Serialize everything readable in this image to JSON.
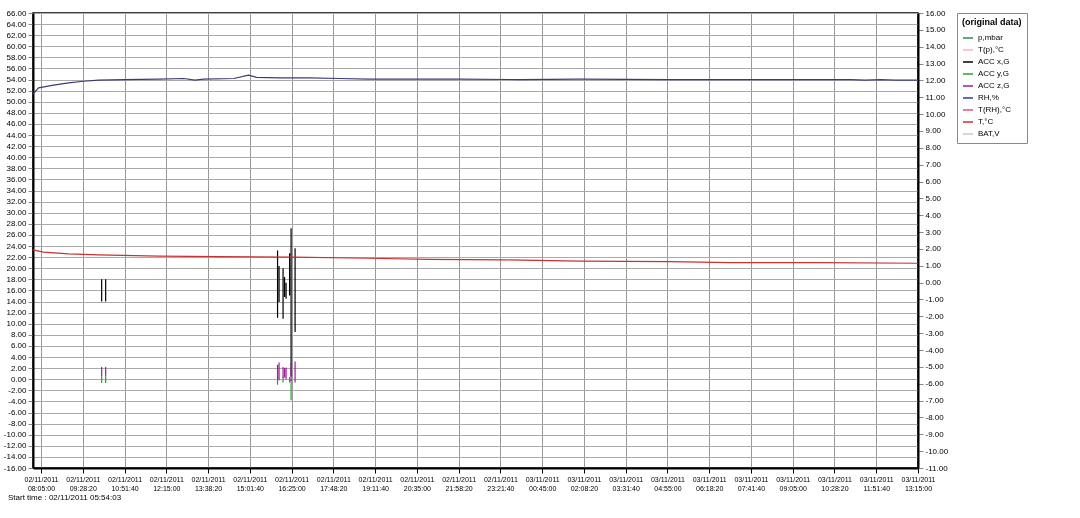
{
  "chart_data": {
    "type": "line",
    "legend_title": "(original data)",
    "legend": "right",
    "grid": true,
    "marker": "none",
    "line_style": "solid",
    "annotations": [
      "Start time : 02/11/2011 05:54:03"
    ],
    "xlim": [
      "2011-11-02T07:49:00",
      "2011-11-03T13:15:00"
    ],
    "xticks": [
      {
        "value": "2011-11-02T08:05:00",
        "label": "02/11/2011 08:05:00"
      },
      {
        "value": "2011-11-02T09:28:20",
        "label": "02/11/2011 09:28:20"
      },
      {
        "value": "2011-11-02T10:51:40",
        "label": "02/11/2011 10:51:40"
      },
      {
        "value": "2011-11-02T12:15:00",
        "label": "02/11/2011 12:15:00"
      },
      {
        "value": "2011-11-02T13:38:20",
        "label": "02/11/2011 13:38:20"
      },
      {
        "value": "2011-11-02T15:01:40",
        "label": "02/11/2011 15:01:40"
      },
      {
        "value": "2011-11-02T16:25:00",
        "label": "02/11/2011 16:25:00"
      },
      {
        "value": "2011-11-02T17:48:20",
        "label": "02/11/2011 17:48:20"
      },
      {
        "value": "2011-11-02T19:11:40",
        "label": "02/11/2011 19:11:40"
      },
      {
        "value": "2011-11-02T20:35:00",
        "label": "02/11/2011 20:35:00"
      },
      {
        "value": "2011-11-02T21:58:20",
        "label": "02/11/2011 21:58:20"
      },
      {
        "value": "2011-11-02T23:21:40",
        "label": "02/11/2011 23:21:40"
      },
      {
        "value": "2011-11-03T00:45:00",
        "label": "03/11/2011 00:45:00"
      },
      {
        "value": "2011-11-03T02:08:20",
        "label": "03/11/2011 02:08:20"
      },
      {
        "value": "2011-11-03T03:31:40",
        "label": "03/11/2011 03:31:40"
      },
      {
        "value": "2011-11-03T04:55:00",
        "label": "03/11/2011 04:55:00"
      },
      {
        "value": "2011-11-03T06:18:20",
        "label": "03/11/2011 06:18:20"
      },
      {
        "value": "2011-11-03T07:41:40",
        "label": "03/11/2011 07:41:40"
      },
      {
        "value": "2011-11-03T09:05:00",
        "label": "03/11/2011 09:05:00"
      },
      {
        "value": "2011-11-03T10:28:20",
        "label": "03/11/2011 10:28:20"
      },
      {
        "value": "2011-11-03T11:51:40",
        "label": "03/11/2011 11:51:40"
      },
      {
        "value": "2011-11-03T13:15:00",
        "label": "03/11/2011 13:15:00"
      }
    ],
    "ylim": [
      -16,
      66
    ],
    "yticks": [
      {
        "value": -16,
        "label": "-16.00"
      },
      {
        "value": -14,
        "label": "-14.00"
      },
      {
        "value": -12,
        "label": "-12.00"
      },
      {
        "value": -10,
        "label": "-10.00"
      },
      {
        "value": -8,
        "label": "-8.00"
      },
      {
        "value": -6,
        "label": "-6.00"
      },
      {
        "value": -4,
        "label": "-4.00"
      },
      {
        "value": -2,
        "label": "-2.00"
      },
      {
        "value": 0,
        "label": "0.00"
      },
      {
        "value": 2,
        "label": "2.00"
      },
      {
        "value": 4,
        "label": "4.00"
      },
      {
        "value": 6,
        "label": "6.00"
      },
      {
        "value": 8,
        "label": "8.00"
      },
      {
        "value": 10,
        "label": "10.00"
      },
      {
        "value": 12,
        "label": "12.00"
      },
      {
        "value": 14,
        "label": "14.00"
      },
      {
        "value": 16,
        "label": "16.00"
      },
      {
        "value": 18,
        "label": "18.00"
      },
      {
        "value": 20,
        "label": "20.00"
      },
      {
        "value": 22,
        "label": "22.00"
      },
      {
        "value": 24,
        "label": "24.00"
      },
      {
        "value": 26,
        "label": "26.00"
      },
      {
        "value": 28,
        "label": "28.00"
      },
      {
        "value": 30,
        "label": "30.00"
      },
      {
        "value": 32,
        "label": "32.00"
      },
      {
        "value": 34,
        "label": "34.00"
      },
      {
        "value": 36,
        "label": "36.00"
      },
      {
        "value": 38,
        "label": "38.00"
      },
      {
        "value": 40,
        "label": "40.00"
      },
      {
        "value": 42,
        "label": "42.00"
      },
      {
        "value": 44,
        "label": "44.00"
      },
      {
        "value": 46,
        "label": "46.00"
      },
      {
        "value": 48,
        "label": "48.00"
      },
      {
        "value": 50,
        "label": "50.00"
      },
      {
        "value": 52,
        "label": "52.00"
      },
      {
        "value": 54,
        "label": "54.00"
      },
      {
        "value": 56,
        "label": "56.00"
      },
      {
        "value": 58,
        "label": "58.00"
      },
      {
        "value": 60,
        "label": "60.00"
      },
      {
        "value": 62,
        "label": "62.00"
      },
      {
        "value": 64,
        "label": "64.00"
      },
      {
        "value": 66,
        "label": "66.00"
      }
    ],
    "y2lim": [
      -11,
      16
    ],
    "y2ticks": [
      {
        "value": -11,
        "label": "-11.00"
      },
      {
        "value": -10,
        "label": "-10.00"
      },
      {
        "value": -9,
        "label": "-9.00"
      },
      {
        "value": -8,
        "label": "-8.00"
      },
      {
        "value": -7,
        "label": "-7.00"
      },
      {
        "value": -6,
        "label": "-6.00"
      },
      {
        "value": -5,
        "label": "-5.00"
      },
      {
        "value": -4,
        "label": "-4.00"
      },
      {
        "value": -3,
        "label": "-3.00"
      },
      {
        "value": -2,
        "label": "-2.00"
      },
      {
        "value": -1,
        "label": "-1.00"
      },
      {
        "value": 0,
        "label": "0.00"
      },
      {
        "value": 1,
        "label": "1.00"
      },
      {
        "value": 2,
        "label": "2.00"
      },
      {
        "value": 3,
        "label": "3.00"
      },
      {
        "value": 4,
        "label": "4.00"
      },
      {
        "value": 5,
        "label": "5.00"
      },
      {
        "value": 6,
        "label": "6.00"
      },
      {
        "value": 7,
        "label": "7.00"
      },
      {
        "value": 8,
        "label": "8.00"
      },
      {
        "value": 9,
        "label": "9.00"
      },
      {
        "value": 10,
        "label": "10.00"
      },
      {
        "value": 11,
        "label": "11.00"
      },
      {
        "value": 12,
        "label": "12.00"
      },
      {
        "value": 13,
        "label": "13.00"
      },
      {
        "value": 14,
        "label": "14.00"
      },
      {
        "value": 15,
        "label": "15.00"
      },
      {
        "value": 16,
        "label": "16.00"
      }
    ],
    "series": [
      {
        "name": "p,mbar",
        "color": "#2e8b57"
      },
      {
        "name": "T(p),°C",
        "color": "#f4b6c2"
      },
      {
        "name": "ACC x,G",
        "color": "#000000",
        "x": [
          "2011-11-02T10:06:00",
          "2011-11-02T10:06:00",
          null,
          "2011-11-02T10:14:00",
          "2011-11-02T10:14:00",
          null,
          "2011-11-02T15:57:00",
          "2011-11-02T15:57:00",
          null,
          "2011-11-02T16:00:00",
          "2011-11-02T16:00:00",
          null,
          "2011-11-02T16:08:00",
          "2011-11-02T16:08:00",
          null,
          "2011-11-02T16:11:00",
          "2011-11-02T16:11:00",
          null,
          "2011-11-02T16:14:00",
          "2011-11-02T16:14:00",
          null,
          "2011-11-02T16:21:00",
          "2011-11-02T16:21:00",
          null,
          "2011-11-02T16:24:00",
          "2011-11-02T16:24:00",
          null,
          "2011-11-02T16:32:00",
          "2011-11-02T16:32:00"
        ],
        "values": [
          18.0,
          14.0,
          null,
          18.0,
          14.0,
          null,
          23.2,
          11.1,
          null,
          20.4,
          13.9,
          null,
          20.0,
          10.9,
          null,
          18.4,
          14.8,
          null,
          17.4,
          14.5,
          null,
          22.7,
          15.1,
          null,
          27.2,
          0.5,
          null,
          23.6,
          8.5
        ]
      },
      {
        "name": "ACC y,G",
        "color": "#2ca02c",
        "x": [
          "2011-11-02T10:06:00",
          "2011-11-02T10:06:00",
          null,
          "2011-11-02T10:14:00",
          "2011-11-02T10:14:00",
          null,
          "2011-11-02T15:57:00",
          "2011-11-02T15:57:00",
          null,
          "2011-11-02T16:08:00",
          "2011-11-02T16:08:00",
          null,
          "2011-11-02T16:21:00",
          "2011-11-02T16:21:00",
          null,
          "2011-11-02T16:24:00",
          "2011-11-02T16:24:00"
        ],
        "values": [
          0.5,
          -0.7,
          null,
          0.5,
          -0.7,
          null,
          0.2,
          -1.0,
          null,
          0.4,
          -0.6,
          null,
          0.4,
          -0.6,
          null,
          0.0,
          -3.8
        ]
      },
      {
        "name": "ACC z,G",
        "color": "#9b1f9b",
        "x": [
          "2011-11-02T10:06:00",
          "2011-11-02T10:06:00",
          null,
          "2011-11-02T10:14:00",
          "2011-11-02T10:14:00",
          null,
          "2011-11-02T15:57:00",
          "2011-11-02T15:57:00",
          null,
          "2011-11-02T16:00:00",
          "2011-11-02T16:00:00",
          null,
          "2011-11-02T16:08:00",
          "2011-11-02T16:08:00",
          null,
          "2011-11-02T16:11:00",
          "2011-11-02T16:11:00",
          null,
          "2011-11-02T16:14:00",
          "2011-11-02T16:14:00",
          null,
          "2011-11-02T16:24:00",
          "2011-11-02T16:24:00",
          null,
          "2011-11-02T16:32:00",
          "2011-11-02T16:32:00"
        ],
        "values": [
          2.2,
          0.5,
          null,
          2.2,
          0.5,
          null,
          2.6,
          0.0,
          null,
          3.0,
          -0.2,
          null,
          2.2,
          0.2,
          null,
          2.0,
          0.3,
          null,
          2.1,
          0.0,
          null,
          3.0,
          -0.3,
          null,
          3.2,
          -0.6
        ]
      },
      {
        "name": "RH,%",
        "color": "#3b3b7a",
        "x": [
          "2011-11-02T07:49:00",
          "2011-11-02T08:00:00",
          "2011-11-02T08:30:00",
          "2011-11-02T09:00:00",
          "2011-11-02T09:30:00",
          "2011-11-02T10:00:00",
          "2011-11-02T10:51:00",
          "2011-11-02T12:00:00",
          "2011-11-02T12:50:00",
          "2011-11-02T13:12:00",
          "2011-11-02T13:30:00",
          "2011-11-02T14:30:00",
          "2011-11-02T14:59:00",
          "2011-11-02T15:15:00",
          "2011-11-02T16:00:00",
          "2011-11-02T17:00:00",
          "2011-11-02T18:00:00",
          "2011-11-02T19:00:00",
          "2011-11-02T20:00:00",
          "2011-11-02T22:00:00",
          "2011-11-03T00:00:00",
          "2011-11-03T02:00:00",
          "2011-11-03T05:00:00",
          "2011-11-03T08:00:00",
          "2011-11-03T11:00:00",
          "2011-11-03T11:30:00",
          "2011-11-03T12:00:00",
          "2011-11-03T12:30:00",
          "2011-11-03T13:15:00"
        ],
        "values": [
          51.4,
          52.5,
          53.0,
          53.4,
          53.7,
          53.9,
          54.0,
          54.1,
          54.2,
          53.9,
          54.1,
          54.2,
          54.8,
          54.4,
          54.3,
          54.3,
          54.2,
          54.1,
          54.1,
          54.1,
          54.0,
          54.1,
          54.0,
          54.0,
          54.0,
          53.9,
          54.0,
          53.9,
          53.9
        ]
      },
      {
        "name": "T(RH),°C",
        "color": "#e05080"
      },
      {
        "name": "T,°C",
        "color": "#c83232",
        "x": [
          "2011-11-02T07:49:00",
          "2011-11-02T08:10:00",
          "2011-11-02T09:00:00",
          "2011-11-02T10:00:00",
          "2011-11-02T12:00:00",
          "2011-11-02T14:00:00",
          "2011-11-02T16:30:00",
          "2011-11-02T19:00:00",
          "2011-11-02T21:00:00",
          "2011-11-02T23:30:00",
          "2011-11-03T02:00:00",
          "2011-11-03T05:00:00",
          "2011-11-03T07:00:00",
          "2011-11-03T10:00:00",
          "2011-11-03T13:15:00"
        ],
        "values": [
          23.3,
          22.9,
          22.6,
          22.4,
          22.2,
          22.1,
          22.0,
          21.8,
          21.6,
          21.5,
          21.3,
          21.2,
          21.0,
          21.0,
          20.9
        ]
      },
      {
        "name": "BAT,V",
        "color": "#c8c8c8"
      }
    ]
  }
}
